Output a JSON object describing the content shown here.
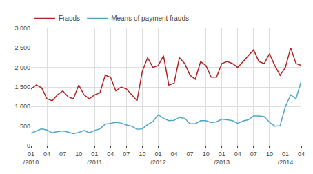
{
  "chart_data": {
    "type": "line",
    "title": "",
    "categories": [
      "01\n/2010",
      null,
      null,
      "04",
      null,
      null,
      "07",
      null,
      null,
      "10",
      null,
      null,
      "01\n/2011",
      null,
      null,
      "04",
      null,
      null,
      "07",
      null,
      null,
      "10",
      null,
      null,
      "01\n/2012",
      null,
      null,
      "04",
      null,
      null,
      "07",
      null,
      null,
      "10",
      null,
      null,
      "01\n/2013",
      null,
      null,
      "04",
      null,
      null,
      "07",
      null,
      null,
      "10",
      null,
      null,
      "01\n/2014",
      null,
      null,
      "04"
    ],
    "series": [
      {
        "name": "Frauds",
        "color": "#b22222",
        "values": [
          1450,
          1550,
          1480,
          1200,
          1150,
          1300,
          1400,
          1250,
          1200,
          1550,
          1300,
          1200,
          1300,
          1350,
          1800,
          1750,
          1400,
          1500,
          1450,
          1300,
          1150,
          1900,
          2250,
          2000,
          2050,
          2300,
          1550,
          1600,
          2250,
          2100,
          1800,
          1700,
          2150,
          2050,
          1750,
          1750,
          2100,
          2150,
          2100,
          2000,
          2150,
          2300,
          2450,
          2150,
          2100,
          2350,
          2050,
          1800,
          2000,
          2500,
          2100,
          2050
        ]
      },
      {
        "name": "Means of payment frauds",
        "color": "#4da6c8",
        "values": [
          320,
          380,
          430,
          400,
          330,
          360,
          380,
          350,
          310,
          340,
          390,
          330,
          390,
          430,
          550,
          570,
          600,
          580,
          530,
          500,
          420,
          430,
          540,
          620,
          790,
          700,
          640,
          650,
          720,
          700,
          560,
          560,
          640,
          640,
          590,
          610,
          680,
          660,
          640,
          570,
          630,
          660,
          760,
          760,
          740,
          600,
          500,
          510,
          1000,
          1300,
          1200,
          1650
        ]
      }
    ],
    "ylim": [
      0,
      3000
    ],
    "yticks": [
      0,
      500,
      {
        "value": 1000,
        "label": "1 000"
      },
      {
        "value": 1500,
        "label": "1 500"
      },
      {
        "value": 2000,
        "label": "2 000"
      },
      {
        "value": 2500,
        "label": "2 500"
      },
      {
        "value": 3000,
        "label": "3 000"
      }
    ],
    "grid": true,
    "legend": "upper left"
  }
}
